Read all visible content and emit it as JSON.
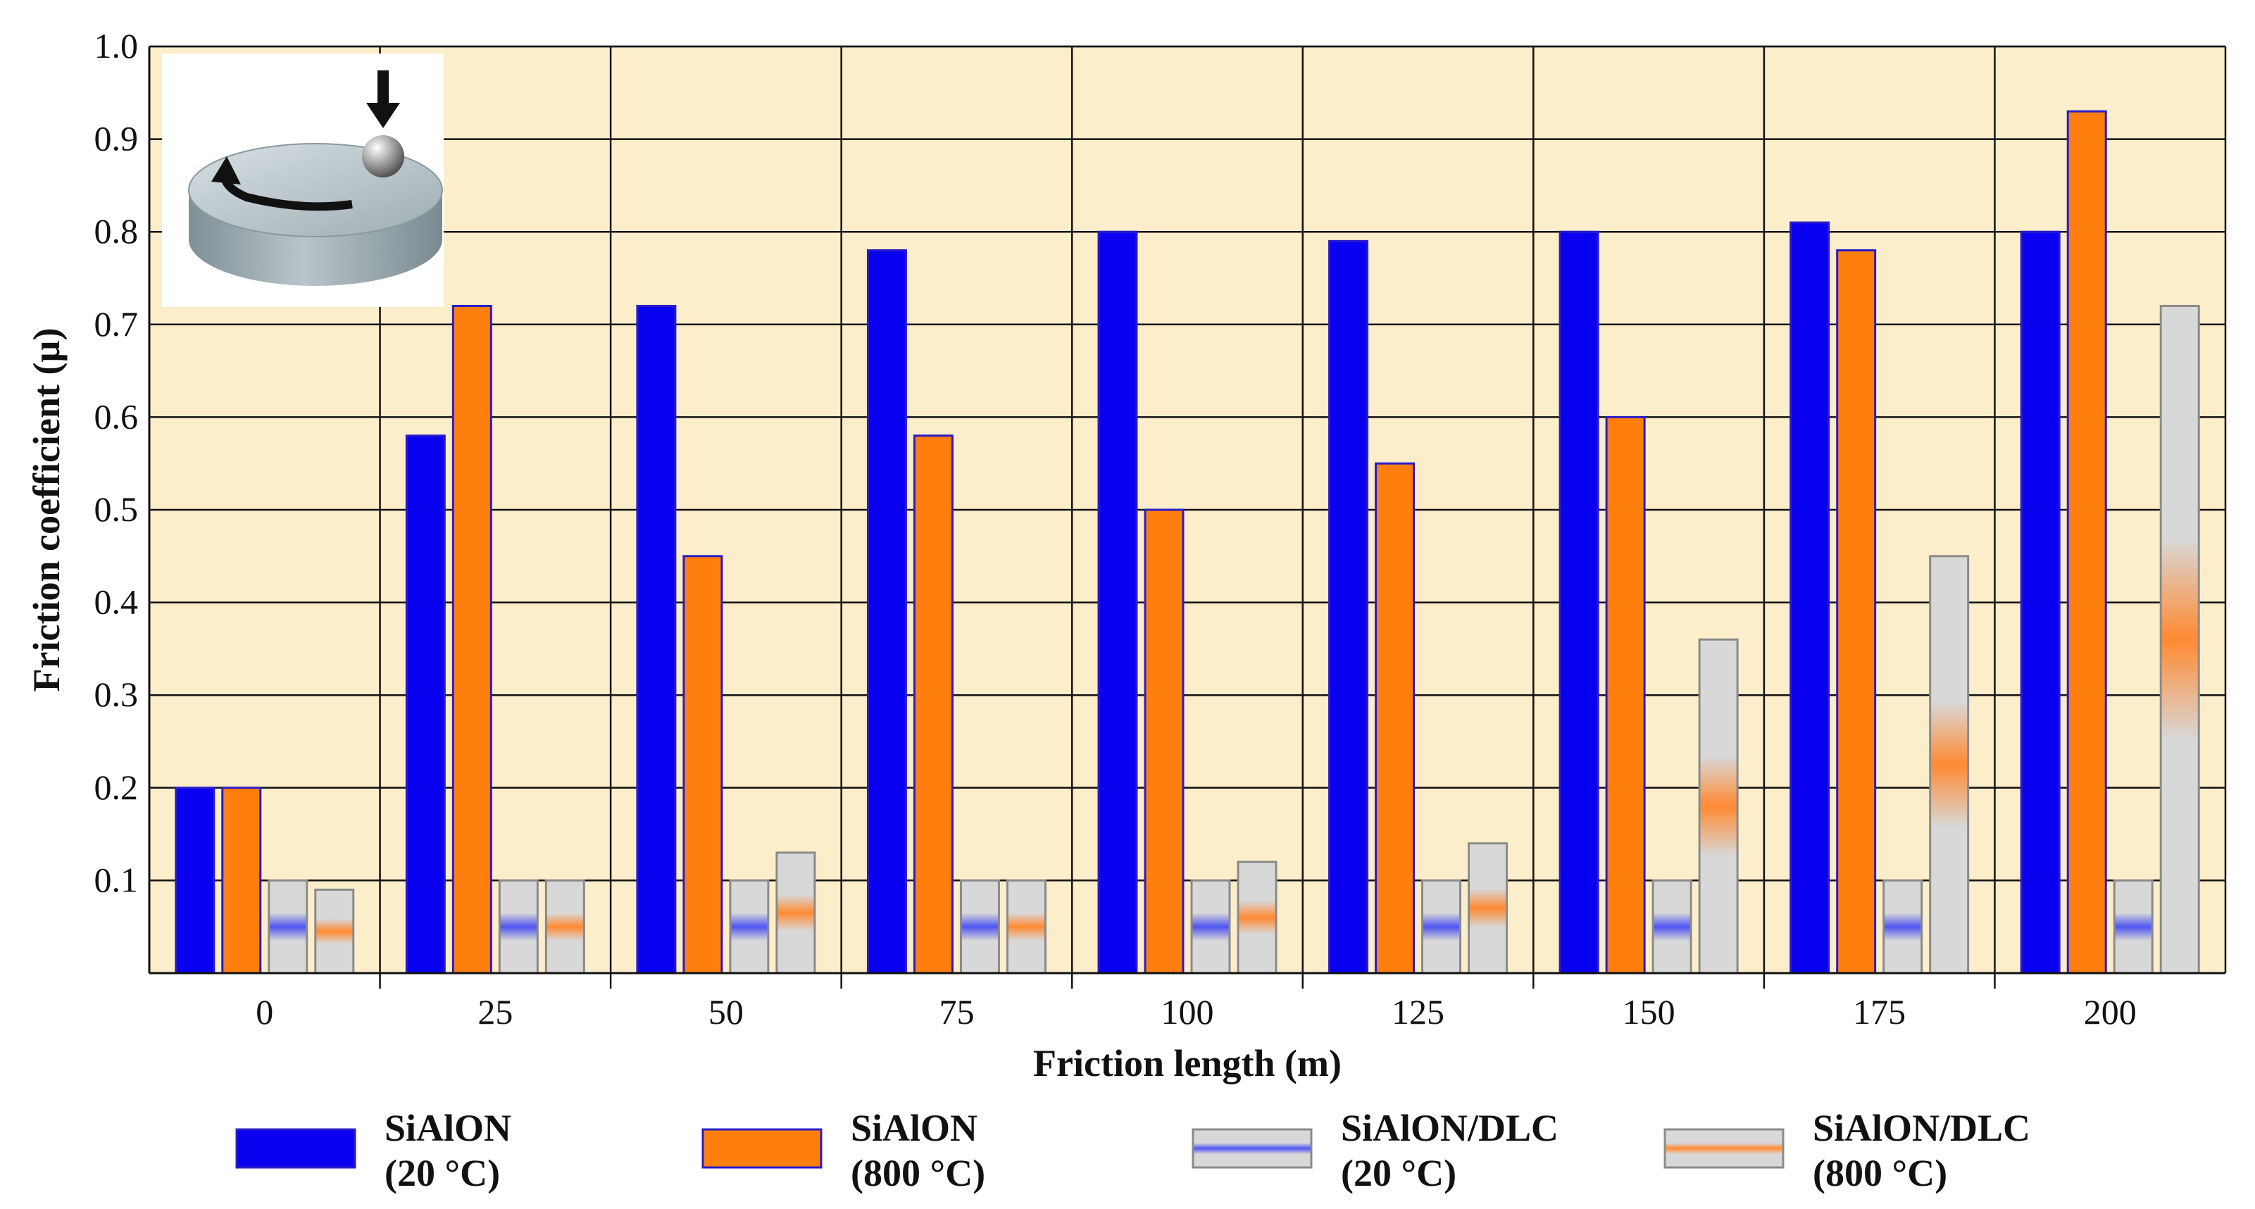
{
  "chart_data": {
    "type": "bar",
    "title": "",
    "xlabel": "Friction length  (m)",
    "ylabel": "Friction coefficient (µ)",
    "ylim": [
      0,
      1.0
    ],
    "y_ticks": [
      "0.1",
      "0.2",
      "0.3",
      "0.4",
      "0.5",
      "0.6",
      "0.7",
      "0.8",
      "0.9",
      "1.0"
    ],
    "categories": [
      "0",
      "25",
      "50",
      "75",
      "100",
      "125",
      "150",
      "175",
      "200"
    ],
    "grid": true,
    "background": "#fdeecb",
    "series": [
      {
        "name": "SiAlON (20 °C)",
        "label_line1": "SiAlON",
        "label_line2": "(20 °C)",
        "color": "#0a00f0",
        "style": "solid",
        "values": [
          0.2,
          0.58,
          0.72,
          0.78,
          0.8,
          0.79,
          0.8,
          0.81,
          0.8
        ]
      },
      {
        "name": "SiAlON (800 °C)",
        "label_line1": "SiAlON",
        "label_line2": "(800 °C)",
        "color": "#ff7f0e",
        "style": "solid",
        "values": [
          0.2,
          0.72,
          0.45,
          0.58,
          0.5,
          0.55,
          0.6,
          0.78,
          0.93
        ]
      },
      {
        "name": "SiAlON/DLC (20 °C)",
        "label_line1": "SiAlON/DLC",
        "label_line2": "(20 °C)",
        "color": "#5a5cf0",
        "style": "gradient",
        "values": [
          0.1,
          0.1,
          0.1,
          0.1,
          0.1,
          0.1,
          0.1,
          0.1,
          0.1
        ]
      },
      {
        "name": "SiAlON/DLC (800 °C)",
        "label_line1": "SiAlON/DLC",
        "label_line2": "(800 °C)",
        "color": "#ff8a33",
        "style": "gradient",
        "values": [
          0.09,
          0.1,
          0.13,
          0.1,
          0.12,
          0.14,
          0.36,
          0.45,
          0.72
        ]
      }
    ],
    "legend_position": "bottom",
    "inset": "pin-on-disk-schematic"
  }
}
